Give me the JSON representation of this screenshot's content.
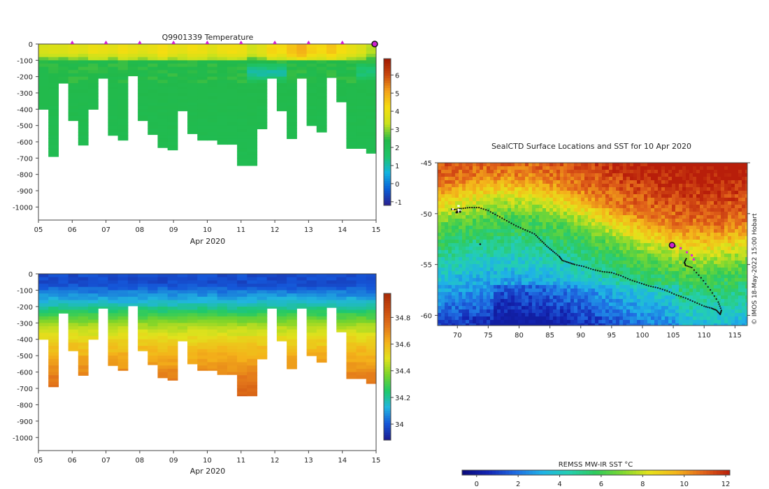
{
  "colors": {
    "temp_scale": [
      "#2a1f8f",
      "#0a5fd6",
      "#12b3e0",
      "#1ec46a",
      "#22b94a",
      "#c9e21c",
      "#f5dd10",
      "#f4a21a",
      "#c8460e",
      "#a01800"
    ],
    "sal_scale": [
      "#1a1a90",
      "#1556d8",
      "#21b5e0",
      "#1ec96a",
      "#7ad42a",
      "#e2e21c",
      "#f4b21a",
      "#e2741a",
      "#c84a0e",
      "#a82a06"
    ],
    "sst_scale": [
      "#0a0a7a",
      "#1426b4",
      "#1f6ce2",
      "#1fb2e6",
      "#24cfb0",
      "#2fca5a",
      "#7ed830",
      "#e6e21a",
      "#f4b41a",
      "#e2641a",
      "#b81e0a"
    ],
    "track": "#111111",
    "recent_track": "#e020e0",
    "marker": "#d020d0"
  },
  "chart_data": [
    {
      "id": "temperature",
      "type": "heatmap",
      "title": "Q9901339  Temperature",
      "xlabel": "Apr 2020",
      "ylabel": "",
      "x_ticks": [
        "05",
        "06",
        "07",
        "08",
        "09",
        "10",
        "11",
        "12",
        "13",
        "14",
        "15"
      ],
      "y_ticks": [
        "0",
        "-100",
        "-200",
        "-300",
        "-400",
        "-500",
        "-600",
        "-700",
        "-800",
        "-900",
        "-1000"
      ],
      "xlim": [
        5,
        15
      ],
      "ylim": [
        -1080,
        0
      ],
      "colorbar_ticks": [
        "6",
        "5",
        "4",
        "3",
        "2",
        "1",
        "0",
        "-1"
      ],
      "colorbar_range": [
        -1.2,
        6.9
      ],
      "profile_markers_days": [
        6,
        7,
        8,
        9,
        10,
        11,
        12,
        13,
        14
      ],
      "current_marker_day": 15,
      "profiles_max_depth": [
        400,
        690,
        240,
        470,
        620,
        400,
        210,
        560,
        590,
        195,
        470,
        555,
        635,
        650,
        410,
        550,
        590,
        590,
        615,
        615,
        745,
        745,
        520,
        210,
        410,
        580,
        210,
        500,
        540,
        205,
        355,
        640,
        640,
        670
      ],
      "surface_temp_pattern": [
        3.6,
        3.7,
        3.6,
        3.8,
        3.7,
        4.0,
        3.9,
        3.8,
        4.1,
        3.9,
        3.8,
        3.9,
        4.2,
        3.9,
        3.9,
        4.1,
        4.0,
        3.8,
        4.0,
        4.1,
        4.0,
        3.5,
        3.8,
        4.3,
        4.2,
        4.6,
        4.9,
        4.4,
        4.3,
        4.6,
        4.2,
        3.9,
        3.7,
        3.2
      ]
    },
    {
      "id": "salinity",
      "type": "heatmap",
      "title": "",
      "xlabel": "Apr 2020",
      "ylabel": "",
      "x_ticks": [
        "05",
        "06",
        "07",
        "08",
        "09",
        "10",
        "11",
        "12",
        "13",
        "14",
        "15"
      ],
      "y_ticks": [
        "0",
        "-100",
        "-200",
        "-300",
        "-400",
        "-500",
        "-600",
        "-700",
        "-800",
        "-900",
        "-1000"
      ],
      "xlim": [
        5,
        15
      ],
      "ylim": [
        -1080,
        0
      ],
      "colorbar_ticks": [
        "34.8",
        "34.6",
        "34.4",
        "34.2",
        "34"
      ],
      "colorbar_range": [
        33.88,
        34.98
      ]
    },
    {
      "id": "sst_map",
      "type": "heatmap",
      "title": "SealCTD Surface Locations and SST for 10 Apr 2020",
      "xlabel": "",
      "ylabel": "",
      "x_ticks": [
        "70",
        "75",
        "80",
        "85",
        "90",
        "95",
        "100",
        "105",
        "110",
        "115"
      ],
      "y_ticks": [
        "-45",
        "-50",
        "-55",
        "-60"
      ],
      "xlim": [
        66.8,
        117.0
      ],
      "ylim": [
        -61.0,
        -45.0
      ],
      "side_label": "© IMOS 18-May-2022 15:00 Hobart",
      "colorbar_label": "REMSS MW-IR SST °C",
      "colorbar_ticks": [
        "0",
        "2",
        "4",
        "6",
        "8",
        "10",
        "12"
      ],
      "colorbar_range": [
        -0.7,
        12.2
      ],
      "track_lon": [
        69.5,
        70.6,
        72.0,
        73.5,
        75.0,
        76.5,
        78.0,
        79.5,
        81.0,
        82.5,
        83.5,
        84.5,
        85.5,
        86.5,
        87.0,
        88.0,
        89.0,
        90.5,
        92.0,
        93.5,
        95.0,
        96.5,
        98.0,
        99.5,
        101.0,
        102.5,
        104.0,
        105.5,
        107.0,
        108.5,
        110.0,
        111.2,
        112.0,
        112.6,
        112.8,
        112.3,
        111.0,
        109.5,
        108.0,
        107.0,
        106.8,
        107.2
      ],
      "track_lat": [
        -49.6,
        -49.5,
        -49.4,
        -49.4,
        -49.7,
        -50.2,
        -50.7,
        -51.2,
        -51.6,
        -52.0,
        -52.6,
        -53.2,
        -53.7,
        -54.2,
        -54.6,
        -54.8,
        -55.0,
        -55.2,
        -55.5,
        -55.7,
        -55.8,
        -56.1,
        -56.5,
        -56.8,
        -57.1,
        -57.3,
        -57.6,
        -58.0,
        -58.3,
        -58.7,
        -59.1,
        -59.3,
        -59.5,
        -59.9,
        -59.5,
        -58.7,
        -57.5,
        -56.3,
        -55.3,
        -55.1,
        -54.8,
        -54.3
      ],
      "recent_lon": [
        105.3,
        106.2,
        107.2,
        108.0,
        108.3
      ],
      "recent_lat": [
        -53.2,
        -53.4,
        -53.8,
        -54.1,
        -54.5
      ],
      "current_position": [
        104.8,
        -53.1
      ],
      "release_site": [
        69.6,
        -49.5
      ],
      "odd_point": [
        73.7,
        -53.0
      ]
    }
  ]
}
